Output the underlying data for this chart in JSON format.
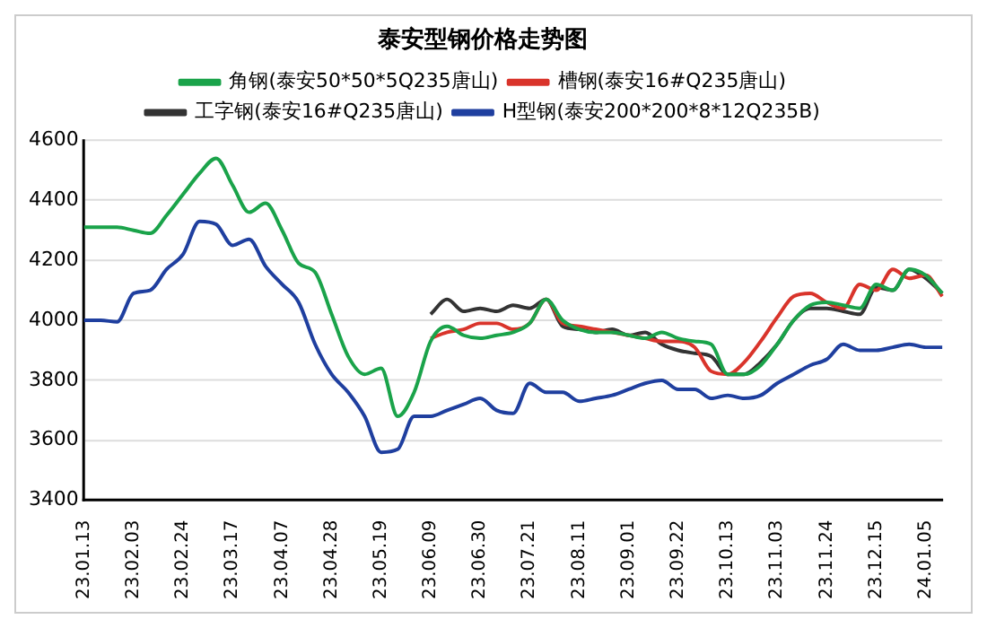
{
  "chart_data": {
    "type": "line",
    "title": "泰安型钢价格走势图",
    "categories": [
      "23.01.13",
      null,
      null,
      "23.02.03",
      null,
      null,
      "23.02.24",
      null,
      null,
      "23.03.17",
      null,
      null,
      "23.04.07",
      null,
      null,
      "23.04.28",
      null,
      null,
      "23.05.19",
      null,
      null,
      "23.06.09",
      null,
      null,
      "23.06.30",
      null,
      null,
      "23.07.21",
      null,
      null,
      "23.08.11",
      null,
      null,
      "23.09.01",
      null,
      null,
      "23.09.22",
      null,
      null,
      "23.10.13",
      null,
      null,
      "23.11.03",
      null,
      null,
      "23.11.24",
      null,
      null,
      "23.12.15",
      null,
      null,
      "24.01.05",
      null
    ],
    "series": [
      {
        "name": "角钢(泰安50*50*5Q235唐山)",
        "color": "#1aa34a",
        "values": [
          4310,
          4310,
          4310,
          4300,
          4290,
          4350,
          4420,
          4490,
          4540,
          4450,
          4360,
          4390,
          4300,
          4190,
          4160,
          4020,
          3880,
          3820,
          3840,
          3680,
          3760,
          3930,
          3980,
          3950,
          3940,
          3950,
          3960,
          3990,
          4070,
          4000,
          3970,
          3960,
          3960,
          3950,
          3940,
          3960,
          3940,
          3930,
          3920,
          3820,
          3820,
          3850,
          3920,
          4000,
          4050,
          4060,
          4050,
          4040,
          4120,
          4100,
          4170,
          4150,
          4090
        ]
      },
      {
        "name": "槽钢(泰安16#Q235唐山)",
        "color": "#d9342b",
        "values": [
          null,
          null,
          null,
          null,
          null,
          null,
          null,
          null,
          null,
          null,
          null,
          null,
          null,
          null,
          null,
          null,
          null,
          null,
          null,
          null,
          null,
          3940,
          3960,
          3970,
          3990,
          3990,
          3970,
          3990,
          4070,
          3990,
          3980,
          3970,
          3960,
          3950,
          3940,
          3930,
          3930,
          3910,
          3830,
          3820,
          3860,
          3930,
          4010,
          4080,
          4090,
          4060,
          4040,
          4120,
          4100,
          4170,
          4140,
          4150,
          4080
        ]
      },
      {
        "name": "工字钢(泰安16#Q235唐山)",
        "color": "#333333",
        "values": [
          null,
          null,
          null,
          null,
          null,
          null,
          null,
          null,
          null,
          null,
          null,
          null,
          null,
          null,
          null,
          null,
          null,
          null,
          null,
          null,
          null,
          4020,
          4070,
          4030,
          4040,
          4030,
          4050,
          4040,
          4070,
          3980,
          3970,
          3960,
          3970,
          3950,
          3960,
          3920,
          3900,
          3890,
          3880,
          3820,
          3820,
          3860,
          3920,
          4000,
          4040,
          4040,
          4030,
          4020,
          4110,
          4100,
          4170,
          4140,
          4090
        ]
      },
      {
        "name": "H型钢(泰安200*200*8*12Q235B)",
        "color": "#1f3f9f",
        "values": [
          4000,
          4000,
          3995,
          4090,
          4100,
          4170,
          4220,
          4330,
          4320,
          4250,
          4270,
          4180,
          4120,
          4060,
          3920,
          3820,
          3760,
          3680,
          3560,
          3570,
          3680,
          3680,
          3700,
          3720,
          3740,
          3700,
          3690,
          3790,
          3760,
          3760,
          3730,
          3740,
          3750,
          3770,
          3790,
          3800,
          3770,
          3770,
          3740,
          3750,
          3740,
          3750,
          3790,
          3820,
          3850,
          3870,
          3920,
          3900,
          3900,
          3910,
          3920,
          3910,
          3910
        ]
      }
    ],
    "ylim": [
      3400,
      4600
    ],
    "yticks": [
      3400,
      3600,
      3800,
      4000,
      4200,
      4400,
      4600
    ],
    "grid": "y",
    "legend": "top",
    "marker": "none",
    "line_style": "solid"
  }
}
